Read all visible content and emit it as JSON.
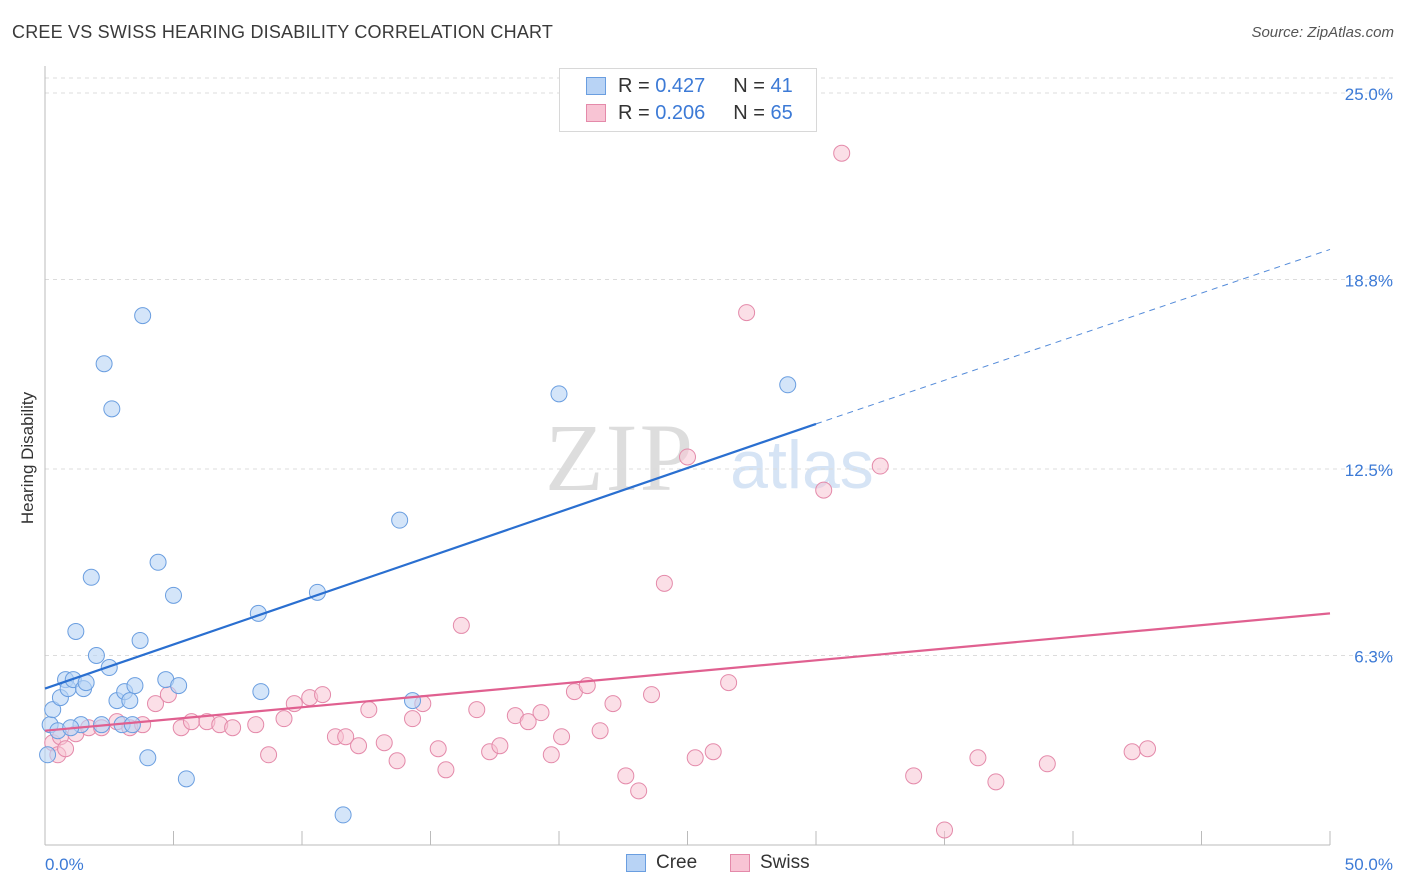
{
  "title": "CREE VS SWISS HEARING DISABILITY CORRELATION CHART",
  "source": "Source: ZipAtlas.com",
  "watermark": {
    "zip": "ZIP",
    "atlas": "atlas"
  },
  "legend": {
    "rows": [
      {
        "r_label": "R = ",
        "r_value": "0.427",
        "n_label": "N = ",
        "n_value": "41"
      },
      {
        "r_label": "R = ",
        "r_value": "0.206",
        "n_label": "N = ",
        "n_value": "65"
      }
    ]
  },
  "colors": {
    "cree_fill": "#b8d3f5",
    "cree_stroke": "#6a9ee0",
    "cree_line": "#2a6fd0",
    "swiss_fill": "#f8c4d4",
    "swiss_stroke": "#e48aaa",
    "swiss_line": "#e06090",
    "value_blue": "#3c7ad6"
  },
  "chart_data": {
    "type": "scatter",
    "title": "CREE VS SWISS HEARING DISABILITY CORRELATION CHART",
    "xlabel": "",
    "ylabel": "Hearing Disability",
    "xlim": [
      0,
      50
    ],
    "ylim": [
      0,
      25.5
    ],
    "x_tick_labels": [
      "0.0%",
      "50.0%"
    ],
    "y_ticks": [
      6.3,
      12.5,
      18.8,
      25.0
    ],
    "y_tick_labels": [
      "6.3%",
      "12.5%",
      "18.8%",
      "25.0%"
    ],
    "grid": true,
    "series": [
      {
        "name": "Cree",
        "r": 0.427,
        "n": 41,
        "trend": {
          "x0": 0,
          "y0": 5.2,
          "x1": 30,
          "y1": 14.0,
          "dash_to_x": 50,
          "dash_to_y": 19.8
        },
        "points": [
          [
            0.1,
            3.0
          ],
          [
            0.2,
            4.0
          ],
          [
            0.3,
            4.5
          ],
          [
            0.5,
            3.8
          ],
          [
            0.6,
            4.9
          ],
          [
            0.8,
            5.5
          ],
          [
            0.9,
            5.2
          ],
          [
            1.1,
            5.5
          ],
          [
            1.2,
            7.1
          ],
          [
            1.4,
            4.0
          ],
          [
            1.5,
            5.2
          ],
          [
            1.6,
            5.4
          ],
          [
            1.8,
            8.9
          ],
          [
            2.0,
            6.3
          ],
          [
            2.2,
            4.0
          ],
          [
            2.3,
            16.0
          ],
          [
            2.5,
            5.9
          ],
          [
            2.6,
            14.5
          ],
          [
            2.8,
            4.8
          ],
          [
            3.0,
            4.0
          ],
          [
            3.1,
            5.1
          ],
          [
            3.3,
            4.8
          ],
          [
            3.4,
            4.0
          ],
          [
            3.5,
            5.3
          ],
          [
            3.7,
            6.8
          ],
          [
            3.8,
            17.6
          ],
          [
            4.0,
            2.9
          ],
          [
            4.4,
            9.4
          ],
          [
            4.7,
            5.5
          ],
          [
            5.0,
            8.3
          ],
          [
            5.2,
            5.3
          ],
          [
            5.5,
            2.2
          ],
          [
            8.3,
            7.7
          ],
          [
            8.4,
            5.1
          ],
          [
            10.6,
            8.4
          ],
          [
            11.6,
            1.0
          ],
          [
            13.8,
            10.8
          ],
          [
            14.3,
            4.8
          ],
          [
            20.0,
            15.0
          ],
          [
            28.9,
            15.3
          ],
          [
            1.0,
            3.9
          ]
        ]
      },
      {
        "name": "Swiss",
        "r": 0.206,
        "n": 65,
        "trend": {
          "x0": 0,
          "y0": 3.8,
          "x1": 50,
          "y1": 7.7
        },
        "points": [
          [
            0.3,
            3.4
          ],
          [
            0.6,
            3.6
          ],
          [
            1.2,
            3.7
          ],
          [
            1.7,
            3.9
          ],
          [
            2.2,
            3.9
          ],
          [
            2.8,
            4.1
          ],
          [
            3.3,
            3.9
          ],
          [
            3.8,
            4.0
          ],
          [
            4.3,
            4.7
          ],
          [
            4.8,
            5.0
          ],
          [
            5.3,
            3.9
          ],
          [
            5.7,
            4.1
          ],
          [
            6.3,
            4.1
          ],
          [
            6.8,
            4.0
          ],
          [
            7.3,
            3.9
          ],
          [
            8.2,
            4.0
          ],
          [
            8.7,
            3.0
          ],
          [
            9.3,
            4.2
          ],
          [
            9.7,
            4.7
          ],
          [
            10.3,
            4.9
          ],
          [
            10.8,
            5.0
          ],
          [
            11.3,
            3.6
          ],
          [
            11.7,
            3.6
          ],
          [
            12.2,
            3.3
          ],
          [
            12.6,
            4.5
          ],
          [
            13.2,
            3.4
          ],
          [
            13.7,
            2.8
          ],
          [
            14.3,
            4.2
          ],
          [
            14.7,
            4.7
          ],
          [
            15.3,
            3.2
          ],
          [
            15.6,
            2.5
          ],
          [
            16.2,
            7.3
          ],
          [
            16.8,
            4.5
          ],
          [
            17.3,
            3.1
          ],
          [
            17.7,
            3.3
          ],
          [
            18.3,
            4.3
          ],
          [
            18.8,
            4.1
          ],
          [
            19.3,
            4.4
          ],
          [
            19.7,
            3.0
          ],
          [
            20.1,
            3.6
          ],
          [
            20.6,
            5.1
          ],
          [
            21.1,
            5.3
          ],
          [
            21.6,
            3.8
          ],
          [
            22.1,
            4.7
          ],
          [
            22.6,
            2.3
          ],
          [
            23.1,
            1.8
          ],
          [
            23.6,
            5.0
          ],
          [
            24.1,
            8.7
          ],
          [
            25.0,
            12.9
          ],
          [
            25.3,
            2.9
          ],
          [
            26.0,
            3.1
          ],
          [
            26.6,
            5.4
          ],
          [
            27.3,
            17.7
          ],
          [
            30.3,
            11.8
          ],
          [
            31.0,
            23.0
          ],
          [
            32.5,
            12.6
          ],
          [
            33.8,
            2.3
          ],
          [
            35.0,
            0.5
          ],
          [
            36.3,
            2.9
          ],
          [
            37.0,
            2.1
          ],
          [
            39.0,
            2.7
          ],
          [
            42.3,
            3.1
          ],
          [
            42.9,
            3.2
          ],
          [
            0.5,
            3.0
          ],
          [
            0.8,
            3.2
          ]
        ]
      }
    ]
  },
  "bottom_legend": [
    {
      "label": "Cree"
    },
    {
      "label": "Swiss"
    }
  ]
}
